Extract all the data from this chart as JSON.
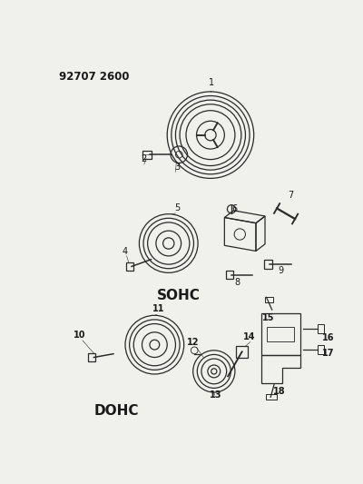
{
  "background_color": "#f0f0ec",
  "fig_width": 4.0,
  "fig_height": 5.33,
  "dpi": 100,
  "header": "92707 2600",
  "sohc_label": "SOHC",
  "dohc_label": "DOHC",
  "text_color": "#1a1a1a",
  "line_color": "#2a2a2a",
  "line_width": 0.9
}
